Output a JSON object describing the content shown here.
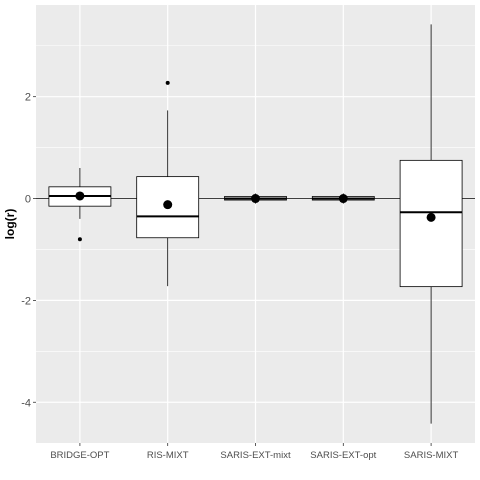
{
  "chart_data": {
    "type": "box",
    "title": "",
    "xlabel": "",
    "ylabel": "log(r)",
    "ylim": [
      -4.8,
      3.8
    ],
    "yticks": [
      2,
      0,
      -2,
      -4
    ],
    "ytick_labels": [
      "2",
      "0",
      "-2",
      "-4"
    ],
    "reference_line_y": 0,
    "grid": true,
    "categories": [
      "BRIDGE-OPT",
      "RIS-MIXT",
      "SARIS-EXT-mixt",
      "SARIS-EXT-opt",
      "SARIS-MIXT"
    ],
    "boxes": [
      {
        "category": "BRIDGE-OPT",
        "q1": -0.15,
        "median": 0.05,
        "q3": 0.23,
        "whisker_low": -0.4,
        "whisker_high": 0.6,
        "mean": 0.05,
        "outliers": [
          -0.8
        ]
      },
      {
        "category": "RIS-MIXT",
        "q1": -0.77,
        "median": -0.35,
        "q3": 0.43,
        "whisker_low": -1.72,
        "whisker_high": 1.73,
        "mean": -0.12,
        "outliers": [
          2.27
        ]
      },
      {
        "category": "SARIS-EXT-mixt",
        "q1": -0.03,
        "median": 0.0,
        "q3": 0.04,
        "whisker_low": -0.1,
        "whisker_high": 0.1,
        "mean": 0.0,
        "outliers": []
      },
      {
        "category": "SARIS-EXT-opt",
        "q1": -0.03,
        "median": 0.0,
        "q3": 0.04,
        "whisker_low": -0.1,
        "whisker_high": 0.1,
        "mean": 0.0,
        "outliers": []
      },
      {
        "category": "SARIS-MIXT",
        "q1": -1.73,
        "median": -0.27,
        "q3": 0.75,
        "whisker_low": -4.42,
        "whisker_high": 3.42,
        "mean": -0.37,
        "outliers": []
      }
    ]
  },
  "colors": {
    "panel": "#ebebeb",
    "grid": "#ffffff",
    "box_fill": "#ffffff",
    "stroke": "#000000",
    "tick_text": "#4d4d4d"
  }
}
